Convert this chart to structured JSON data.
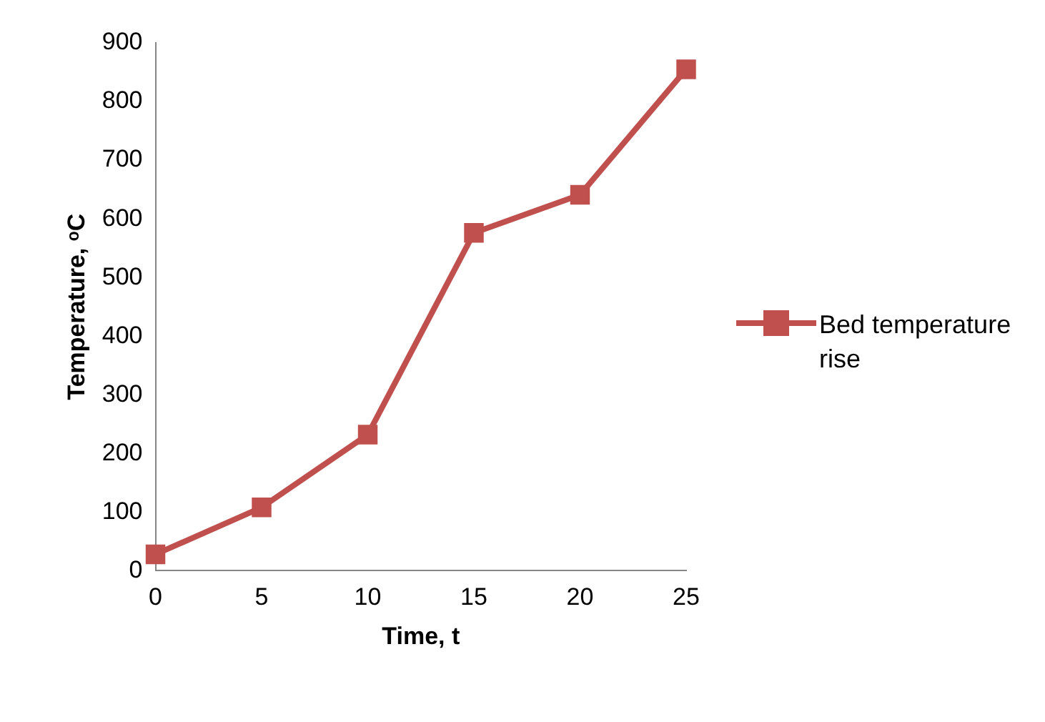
{
  "chart_data": {
    "type": "line",
    "xlabel": "Time, t",
    "ylabel": "Temperature, ᵒC",
    "categories": [
      "0",
      "5",
      "10",
      "15",
      "20",
      "25"
    ],
    "series": [
      {
        "name": "Bed temperature rise",
        "color": "#c0504d",
        "values": [
          28,
          108,
          232,
          576,
          641,
          855
        ]
      }
    ],
    "ylim": [
      0,
      900
    ],
    "yticks": [
      0,
      100,
      200,
      300,
      400,
      500,
      600,
      700,
      800,
      900
    ],
    "grid": false,
    "legend": "right",
    "marker": "square",
    "line_style": "solid"
  }
}
